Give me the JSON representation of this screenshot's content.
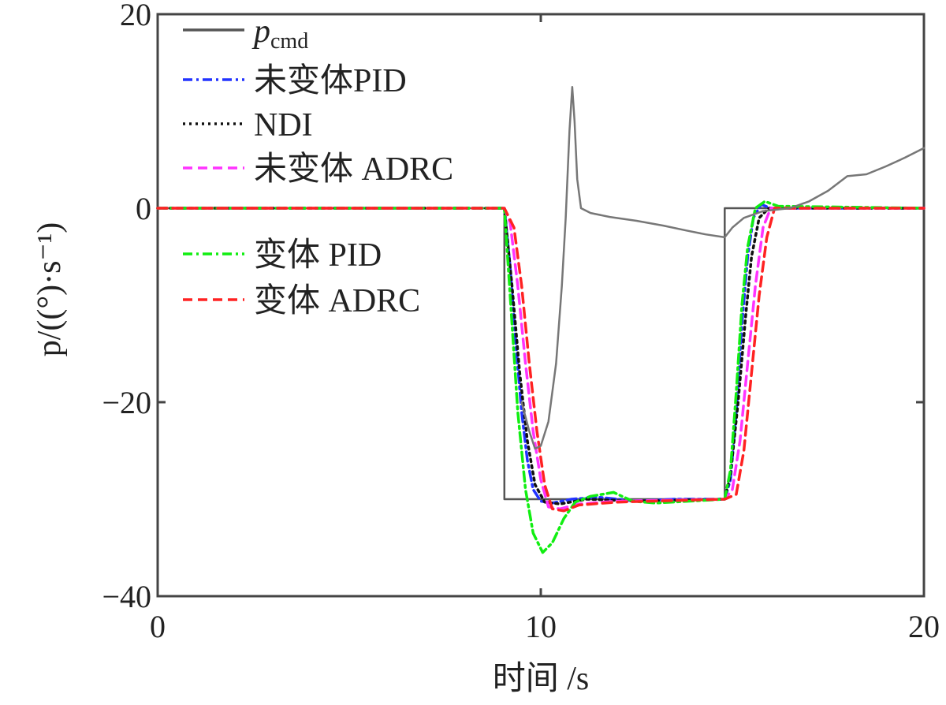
{
  "chart_data": {
    "type": "line",
    "title": "",
    "xlabel": "时间 /s",
    "ylabel": "p/((°)·s⁻¹)",
    "xlim": [
      0,
      20
    ],
    "ylim": [
      -40,
      20
    ],
    "xticks": [
      0,
      10,
      20
    ],
    "yticks": [
      20,
      0,
      -20,
      -40
    ],
    "grid": false,
    "legend_position": "top-left",
    "series": [
      {
        "name": "p_cmd",
        "color": "#555555",
        "style": "solid",
        "points": [
          [
            0,
            0
          ],
          [
            9.05,
            0
          ],
          [
            9.05,
            -30
          ],
          [
            14.8,
            -30
          ],
          [
            14.8,
            0
          ],
          [
            20,
            0
          ]
        ]
      },
      {
        "name": "未变体PID",
        "color": "#2233ff",
        "style": "dashdot",
        "points": [
          [
            0,
            0
          ],
          [
            9.05,
            0
          ],
          [
            9.2,
            -6
          ],
          [
            9.35,
            -14
          ],
          [
            9.5,
            -21
          ],
          [
            9.65,
            -26
          ],
          [
            9.8,
            -29
          ],
          [
            10.0,
            -30.2
          ],
          [
            10.3,
            -30.4
          ],
          [
            10.8,
            -30
          ],
          [
            11.5,
            -29.8
          ],
          [
            12.5,
            -30.2
          ],
          [
            13.5,
            -30
          ],
          [
            14.8,
            -30
          ],
          [
            14.95,
            -28
          ],
          [
            15.1,
            -21
          ],
          [
            15.25,
            -12
          ],
          [
            15.4,
            -5
          ],
          [
            15.55,
            -1
          ],
          [
            15.75,
            0.4
          ],
          [
            16.0,
            0
          ],
          [
            20,
            0
          ]
        ]
      },
      {
        "name": "NDI",
        "color": "#111111",
        "style": "dotted",
        "points": [
          [
            0,
            0
          ],
          [
            9.05,
            0
          ],
          [
            9.25,
            -8
          ],
          [
            9.45,
            -17
          ],
          [
            9.65,
            -24
          ],
          [
            9.85,
            -28.5
          ],
          [
            10.1,
            -30.3
          ],
          [
            10.5,
            -30.5
          ],
          [
            11.2,
            -30
          ],
          [
            12.5,
            -30.2
          ],
          [
            14.8,
            -30
          ],
          [
            14.95,
            -27.5
          ],
          [
            15.15,
            -20
          ],
          [
            15.35,
            -11
          ],
          [
            15.5,
            -5
          ],
          [
            15.7,
            -1
          ],
          [
            15.95,
            0
          ],
          [
            20,
            0
          ]
        ]
      },
      {
        "name": "未变体 ADRC",
        "color": "#ff33ff",
        "style": "dashed",
        "points": [
          [
            0,
            0
          ],
          [
            9.05,
            0
          ],
          [
            9.2,
            -1.5
          ],
          [
            9.4,
            -8
          ],
          [
            9.6,
            -16
          ],
          [
            9.8,
            -23
          ],
          [
            10.0,
            -28
          ],
          [
            10.2,
            -30.8
          ],
          [
            10.5,
            -31
          ],
          [
            11.0,
            -30.5
          ],
          [
            12.0,
            -30.2
          ],
          [
            14.8,
            -30
          ],
          [
            15.0,
            -29
          ],
          [
            15.2,
            -24
          ],
          [
            15.4,
            -16
          ],
          [
            15.6,
            -8
          ],
          [
            15.8,
            -2
          ],
          [
            16.0,
            0
          ],
          [
            20,
            0
          ]
        ]
      },
      {
        "name": "变体 PID",
        "color": "#11ee11",
        "style": "dashdot",
        "points": [
          [
            0,
            0
          ],
          [
            9.05,
            0
          ],
          [
            9.2,
            -9
          ],
          [
            9.4,
            -21
          ],
          [
            9.6,
            -29
          ],
          [
            9.8,
            -33.5
          ],
          [
            10.05,
            -35.5
          ],
          [
            10.3,
            -34.5
          ],
          [
            10.6,
            -32
          ],
          [
            10.9,
            -30.3
          ],
          [
            11.3,
            -29.7
          ],
          [
            11.9,
            -29.3
          ],
          [
            12.4,
            -30.2
          ],
          [
            13.0,
            -30.4
          ],
          [
            14.8,
            -30
          ],
          [
            14.95,
            -27
          ],
          [
            15.1,
            -19
          ],
          [
            15.25,
            -10
          ],
          [
            15.4,
            -4
          ],
          [
            15.6,
            0
          ],
          [
            15.85,
            0.7
          ],
          [
            16.2,
            0.2
          ],
          [
            20,
            0
          ]
        ]
      },
      {
        "name": "变体 ADRC",
        "color": "#ff2222",
        "style": "dashed",
        "points": [
          [
            0,
            0
          ],
          [
            9.05,
            0
          ],
          [
            9.3,
            -2
          ],
          [
            9.5,
            -8
          ],
          [
            9.7,
            -16
          ],
          [
            9.9,
            -23
          ],
          [
            10.1,
            -28.5
          ],
          [
            10.3,
            -31
          ],
          [
            10.6,
            -31.2
          ],
          [
            11.0,
            -30.6
          ],
          [
            12.0,
            -30.3
          ],
          [
            14.8,
            -30
          ],
          [
            15.1,
            -29.5
          ],
          [
            15.3,
            -25
          ],
          [
            15.5,
            -17
          ],
          [
            15.7,
            -9
          ],
          [
            15.9,
            -3
          ],
          [
            16.1,
            0
          ],
          [
            20,
            0
          ]
        ]
      },
      {
        "name": "",
        "color": "#777777",
        "style": "solid",
        "points": [
          [
            9.5,
            -20
          ],
          [
            9.7,
            -23
          ],
          [
            9.85,
            -24.8
          ],
          [
            10.0,
            -24.5
          ],
          [
            10.2,
            -22
          ],
          [
            10.4,
            -16
          ],
          [
            10.55,
            -8
          ],
          [
            10.65,
            -1
          ],
          [
            10.75,
            8
          ],
          [
            10.82,
            12.5
          ],
          [
            10.88,
            9
          ],
          [
            10.95,
            3
          ],
          [
            11.05,
            0
          ],
          [
            11.3,
            -0.5
          ],
          [
            11.8,
            -0.9
          ],
          [
            12.5,
            -1.3
          ],
          [
            13.2,
            -1.8
          ],
          [
            13.8,
            -2.3
          ],
          [
            14.3,
            -2.7
          ],
          [
            14.8,
            -3
          ],
          [
            15.0,
            -2
          ],
          [
            15.3,
            -1
          ],
          [
            15.8,
            -0.3
          ],
          [
            16.5,
            0
          ],
          [
            17.0,
            0.7
          ],
          [
            17.5,
            1.8
          ],
          [
            18.0,
            3.3
          ],
          [
            18.5,
            3.5
          ],
          [
            19.0,
            4.3
          ],
          [
            19.5,
            5.2
          ],
          [
            20,
            6.2
          ]
        ]
      }
    ]
  }
}
